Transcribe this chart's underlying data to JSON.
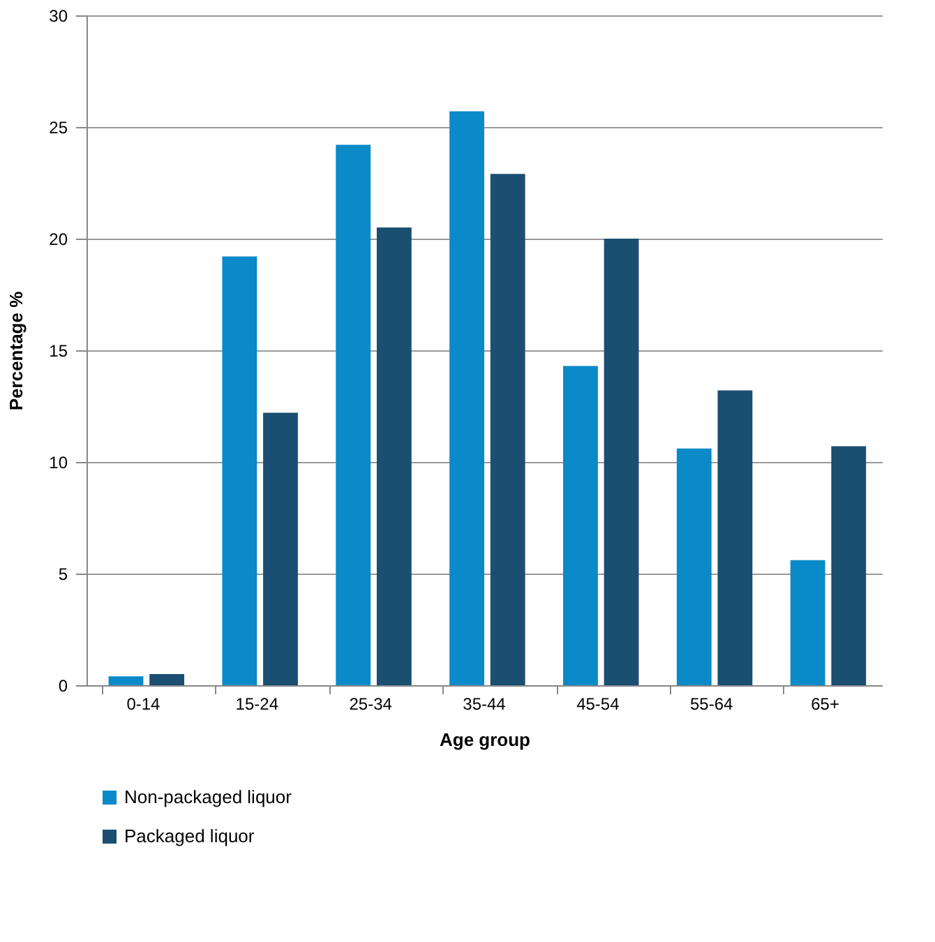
{
  "chart_data": {
    "type": "bar",
    "xlabel": "Age group",
    "ylabel": "Percentage %",
    "categories": [
      "0-14",
      "15-24",
      "25-34",
      "35-44",
      "45-54",
      "55-64",
      "65+"
    ],
    "series": [
      {
        "name": "Non-packaged liquor",
        "color": "#0a8ac8",
        "values": [
          0.4,
          19.2,
          24.2,
          25.7,
          14.3,
          10.6,
          5.6
        ]
      },
      {
        "name": "Packaged liquor",
        "color": "#1a4f72",
        "values": [
          0.5,
          12.2,
          20.5,
          22.9,
          20.0,
          13.2,
          10.7
        ]
      }
    ],
    "ylim": [
      0,
      30
    ],
    "yticks": [
      0,
      5,
      10,
      15,
      20,
      25,
      30
    ],
    "grid": "y",
    "legend": "bottom"
  }
}
